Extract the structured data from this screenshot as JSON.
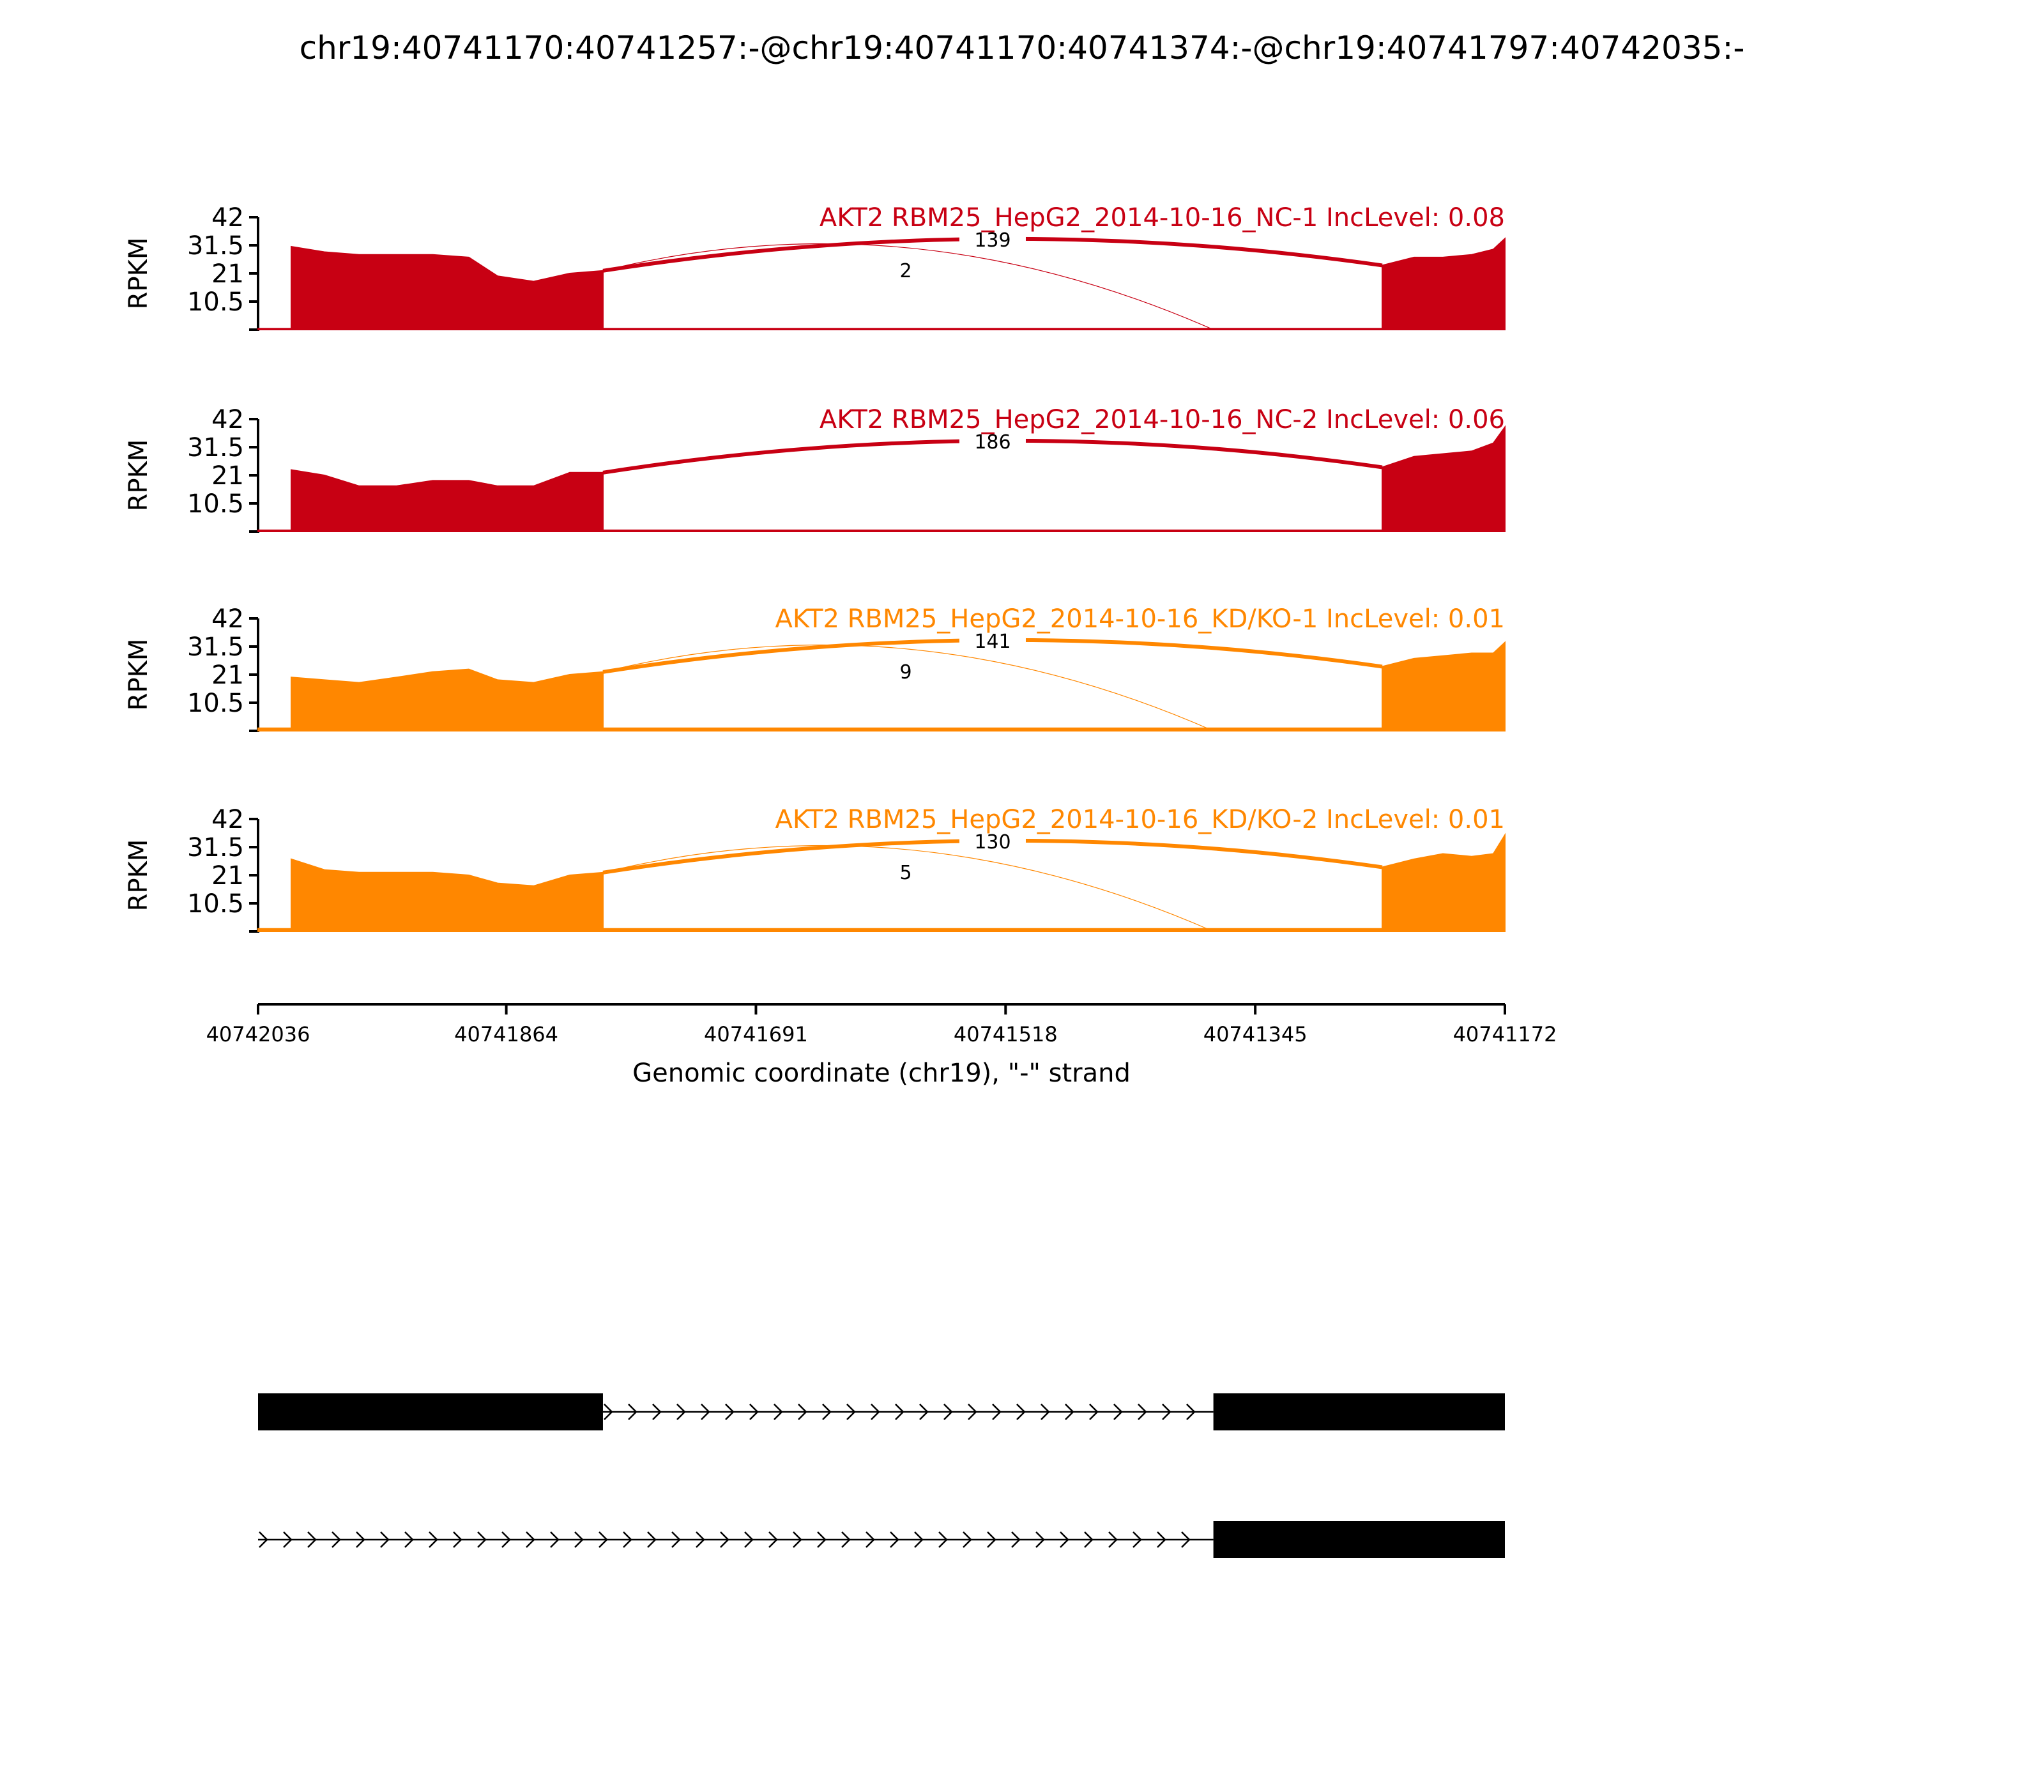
{
  "chart_data": {
    "type": "area",
    "title": "chr19:40741170:40741257:-@chr19:40741170:40741374:-@chr19:40741797:40742035:-",
    "xlabel": "Genomic coordinate (chr19), \"-\" strand",
    "xlim": [
      40742036,
      40741172
    ],
    "x_ticks": [
      "40742036",
      "40741864",
      "40741691",
      "40741518",
      "40741345",
      "40741172"
    ],
    "ylabel": "RPKM",
    "ylim": [
      0,
      42
    ],
    "y_ticks": [
      "10.5",
      "21",
      "31.5",
      "42"
    ],
    "grid": false,
    "colors": {
      "nc": "#c80013",
      "kd": "#ff8700"
    },
    "exon_regions": [
      [
        40742036,
        40741797
      ],
      [
        40741257,
        40741172
      ]
    ],
    "tracks": [
      {
        "name": "AKT2 RBM25_HepG2_2014-10-16_NC-1 IncLevel: 0.08",
        "group": "nc",
        "exon1_profile": [
          [
            40742013,
            31
          ],
          [
            40741990,
            29
          ],
          [
            40741966,
            28
          ],
          [
            40741940,
            28
          ],
          [
            40741915,
            28
          ],
          [
            40741890,
            27
          ],
          [
            40741870,
            20
          ],
          [
            40741845,
            18
          ],
          [
            40741820,
            21
          ],
          [
            40741797,
            22
          ]
        ],
        "exon2_profile": [
          [
            40741257,
            24
          ],
          [
            40741235,
            27
          ],
          [
            40741215,
            27
          ],
          [
            40741195,
            28
          ],
          [
            40741180,
            30
          ],
          [
            40741172,
            34
          ]
        ],
        "intron_baseline": 0.4,
        "junctions": [
          {
            "label": "139",
            "count": 139,
            "from": 40741797,
            "to": 40741257
          },
          {
            "label": "2",
            "count": 2,
            "from": 40741797,
            "to": 40741374
          }
        ]
      },
      {
        "name": "AKT2 RBM25_HepG2_2014-10-16_NC-2 IncLevel: 0.06",
        "group": "nc",
        "exon1_profile": [
          [
            40742013,
            23
          ],
          [
            40741990,
            21
          ],
          [
            40741966,
            17
          ],
          [
            40741940,
            17
          ],
          [
            40741915,
            19
          ],
          [
            40741890,
            19
          ],
          [
            40741870,
            17
          ],
          [
            40741845,
            17
          ],
          [
            40741820,
            22
          ],
          [
            40741797,
            22
          ]
        ],
        "exon2_profile": [
          [
            40741257,
            24
          ],
          [
            40741235,
            28
          ],
          [
            40741215,
            29
          ],
          [
            40741195,
            30
          ],
          [
            40741180,
            33
          ],
          [
            40741172,
            39
          ]
        ],
        "intron_baseline": 0.5,
        "junctions": [
          {
            "label": "186",
            "count": 186,
            "from": 40741797,
            "to": 40741257
          }
        ]
      },
      {
        "name": "AKT2 RBM25_HepG2_2014-10-16_KD/KO-1 IncLevel: 0.01",
        "group": "kd",
        "exon1_profile": [
          [
            40742013,
            20
          ],
          [
            40741990,
            19
          ],
          [
            40741966,
            18
          ],
          [
            40741940,
            20
          ],
          [
            40741915,
            22
          ],
          [
            40741890,
            23
          ],
          [
            40741870,
            19
          ],
          [
            40741845,
            18
          ],
          [
            40741820,
            21
          ],
          [
            40741797,
            22
          ]
        ],
        "exon2_profile": [
          [
            40741257,
            24
          ],
          [
            40741235,
            27
          ],
          [
            40741215,
            28
          ],
          [
            40741195,
            29
          ],
          [
            40741180,
            29
          ],
          [
            40741172,
            33
          ]
        ],
        "intron_baseline": 1.0,
        "junctions": [
          {
            "label": "141",
            "count": 141,
            "from": 40741797,
            "to": 40741257
          },
          {
            "label": "9",
            "count": 9,
            "from": 40741797,
            "to": 40741374
          }
        ]
      },
      {
        "name": "AKT2 RBM25_HepG2_2014-10-16_KD/KO-2 IncLevel: 0.01",
        "group": "kd",
        "exon1_profile": [
          [
            40742013,
            27
          ],
          [
            40741990,
            23
          ],
          [
            40741966,
            22
          ],
          [
            40741940,
            22
          ],
          [
            40741915,
            22
          ],
          [
            40741890,
            21
          ],
          [
            40741870,
            18
          ],
          [
            40741845,
            17
          ],
          [
            40741820,
            21
          ],
          [
            40741797,
            22
          ]
        ],
        "exon2_profile": [
          [
            40741257,
            24
          ],
          [
            40741235,
            27
          ],
          [
            40741215,
            29
          ],
          [
            40741195,
            28
          ],
          [
            40741180,
            29
          ],
          [
            40741172,
            36
          ]
        ],
        "intron_baseline": 1.0,
        "junctions": [
          {
            "label": "130",
            "count": 130,
            "from": 40741797,
            "to": 40741257
          },
          {
            "label": "5",
            "count": 5,
            "from": 40741797,
            "to": 40741374
          }
        ]
      }
    ],
    "isoforms": [
      {
        "exons": [
          [
            40742036,
            40741797
          ],
          [
            40741374,
            40741172
          ]
        ]
      },
      {
        "exons": [
          [
            40741374,
            40741172
          ]
        ]
      }
    ]
  }
}
